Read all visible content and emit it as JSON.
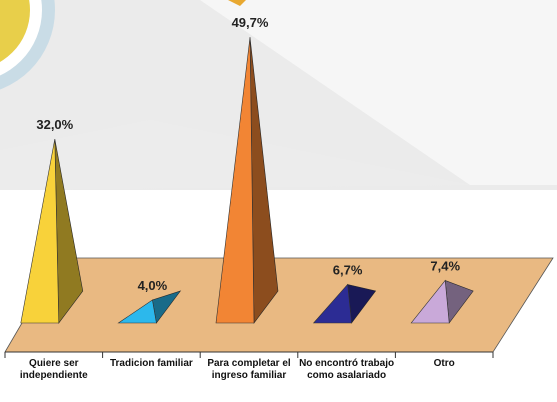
{
  "chart_data": {
    "type": "pyramid",
    "categories": [
      "Quiere ser independiente",
      "Tradicion familiar",
      "Para completar el ingreso familiar",
      "No encontró trabajo como asalariado",
      "Otro"
    ],
    "values": [
      32.0,
      4.0,
      49.7,
      6.7,
      7.4
    ],
    "value_labels": [
      "32,0%",
      "4,0%",
      "49,7%",
      "6,7%",
      "7,4%"
    ],
    "colors": [
      "#f8d23a",
      "#2cb8ec",
      "#f28534",
      "#2c2c94",
      "#c9a9d9"
    ]
  }
}
